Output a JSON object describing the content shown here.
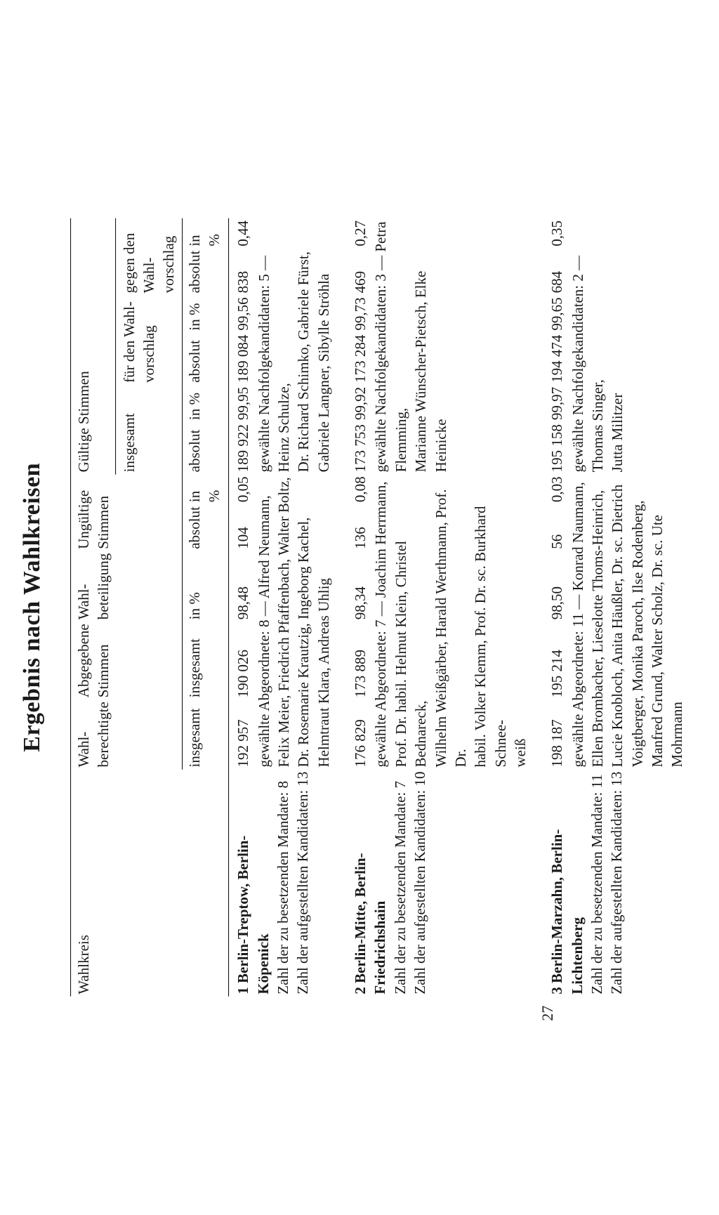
{
  "title": "Ergebnis nach Wahlkreisen",
  "page_number": "27",
  "headers": {
    "wahlkreis": "Wahlkreis",
    "wahlberechtigte": "Wahl-\nberechtigte",
    "abgegebene": "Abgegebene\nStimmen",
    "wahlbeteiligung": "Wahl-\nbeteiligung",
    "ungueltig": "Ungültige\nStimmen",
    "gueltig": "Gültige Stimmen",
    "insgesamt": "insgesamt",
    "in_pct": "in %",
    "absolut": "absolut",
    "fuer": "für den Wahl-\nvorschlag",
    "gegen": "gegen den Wahl-\nvorschlag"
  },
  "districts": [
    {
      "num": "1",
      "name": "Berlin-Treptow, Berlin-\nKöpenick",
      "mandate_label": "Zahl der zu besetzenden Mandate:",
      "mandate": "8",
      "kandidaten_label": "Zahl der aufgestellten Kandidaten:",
      "kandidaten": "13",
      "eligible": "192 957",
      "votes_cast": "190 026",
      "turnout_pct": "98,48",
      "invalid_abs": "104",
      "invalid_pct": "0,05",
      "valid_abs": "189 922",
      "valid_pct": "99,95",
      "for_abs": "189 084",
      "for_pct": "99,56",
      "against_abs": "838",
      "against_pct": "0,44",
      "elected_label": "gewählte Abgeordnete:",
      "elected_count": "8",
      "elected_list": "— Alfred Neumann,\nFelix Meier, Friedrich Pfaffenbach, Walter Boltz,\nDr. Rosemarie Krautzig, Ingeborg Kachel,\nHelmtraut Klara, Andreas Uhlig",
      "succ_label": "gewählte Nachfolgekandidaten:",
      "succ_count": "5",
      "succ_list": "— Heinz Schulze,\nDr. Richard Schimko, Gabriele Fürst,\nGabriele Langner, Sibylle Ströhla"
    },
    {
      "num": "2",
      "name": "Berlin-Mitte, Berlin-\nFriedrichshain",
      "mandate_label": "Zahl der zu besetzenden Mandate:",
      "mandate": "7",
      "kandidaten_label": "Zahl der aufgestellten Kandidaten:",
      "kandidaten": "10",
      "eligible": "176 829",
      "votes_cast": "173 889",
      "turnout_pct": "98,34",
      "invalid_abs": "136",
      "invalid_pct": "0,08",
      "valid_abs": "173 753",
      "valid_pct": "99,92",
      "for_abs": "173 284",
      "for_pct": "99,73",
      "against_abs": "469",
      "against_pct": "0,27",
      "elected_label": "gewählte Abgeordnete:",
      "elected_count": "7",
      "elected_list": "— Joachim Herrmann,\nProf. Dr. habil. Helmut Klein, Christel Bednareck,\nWilhelm Weißgärber, Harald Werthmann, Prof. Dr.\nhabil. Volker Klemm, Prof. Dr. sc. Burkhard Schnee-\nweiß",
      "succ_label": "gewählte Nachfolgekandidaten:",
      "succ_count": "3",
      "succ_list": "— Petra Flemming,\nMarianne Wünscher-Pietsch, Elke Heinicke"
    },
    {
      "num": "3",
      "name": "Berlin-Marzahn, Berlin-\nLichtenberg",
      "mandate_label": "Zahl der zu besetzenden Mandate:",
      "mandate": "11",
      "kandidaten_label": "Zahl der aufgestellten Kandidaten:",
      "kandidaten": "13",
      "eligible": "198 187",
      "votes_cast": "195 214",
      "turnout_pct": "98,50",
      "invalid_abs": "56",
      "invalid_pct": "0,03",
      "valid_abs": "195 158",
      "valid_pct": "99,97",
      "for_abs": "194 474",
      "for_pct": "99,65",
      "against_abs": "684",
      "against_pct": "0,35",
      "elected_label": "gewählte Abgeordnete:",
      "elected_count": "11",
      "elected_list": "— Konrad Naumann,\nEllen Brombacher, Lieselotte Thoms-Heinrich,\nLucie Knobloch, Anita Häußler, Dr. sc. Dietrich\nVoigtberger, Monika Paroch, Ilse Rodenberg,\nManfred Grund, Walter Scholz, Dr. sc. Ute Mohrmann",
      "succ_label": "gewählte Nachfolgekandidaten:",
      "succ_count": "2",
      "succ_list": "— Thomas Singer,\nJutta Militzer"
    }
  ]
}
